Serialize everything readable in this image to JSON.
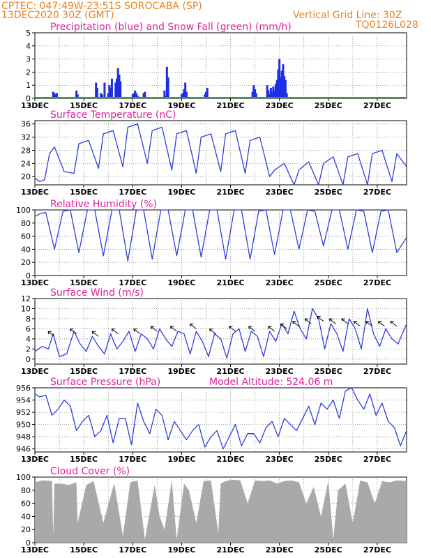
{
  "header": {
    "line1": "CPTEC:   047:49W-23:51S   SOROCABA (SP)",
    "line2": "13DEC2020 30Z (GMT)",
    "grid_note": "Vertical Grid Line: 30Z",
    "code": "TQ0126L028"
  },
  "colors": {
    "header": "#e8821e",
    "title": "#e0219c",
    "line": "#2b3fd9",
    "bar": "#1f2ee6",
    "snow": "#22aa22",
    "cloud": "#a9a9a9",
    "arrow": "#000000"
  },
  "chart_data": [
    {
      "type": "bar",
      "title": "Precipitation (blue) and Snow Fall (green) (mm/h)",
      "x_ticks": [
        "13DEC",
        "15DEC",
        "17DEC",
        "19DEC",
        "21DEC",
        "23DEC",
        "25DEC",
        "27DEC"
      ],
      "x_range": [
        0,
        15.2
      ],
      "ylim": [
        0,
        5
      ],
      "y_ticks": [
        0,
        1,
        2,
        3,
        4,
        5
      ],
      "grid": true,
      "series": [
        {
          "name": "Precipitation",
          "x": [
            0.75,
            0.8,
            0.85,
            0.9,
            1.7,
            1.75,
            2.5,
            2.55,
            2.7,
            2.75,
            2.85,
            3.0,
            3.05,
            3.1,
            3.15,
            3.3,
            3.35,
            3.4,
            3.45,
            3.5,
            4.0,
            4.05,
            4.1,
            4.15,
            4.2,
            4.45,
            4.5,
            5.3,
            5.35,
            5.4,
            5.45,
            6.0,
            6.05,
            6.1,
            6.15,
            6.2,
            6.95,
            7.0,
            7.05,
            8.9,
            8.95,
            9.0,
            9.05,
            9.5,
            9.55,
            9.6,
            9.65,
            9.7,
            9.75,
            9.8,
            9.85,
            9.9,
            9.95,
            10.0,
            10.05,
            10.1,
            10.15,
            10.2,
            10.25,
            10.3
          ],
          "values": [
            0.5,
            0.4,
            0.3,
            0.4,
            0.6,
            0.3,
            1.2,
            0.8,
            0.4,
            0.3,
            1.2,
            0.4,
            1.0,
            0.8,
            1.5,
            1.2,
            1.5,
            2.3,
            1.8,
            1.3,
            0.3,
            0.4,
            0.6,
            0.4,
            0.2,
            0.4,
            0.5,
            0.6,
            0.2,
            2.4,
            1.6,
            0.3,
            0.4,
            0.7,
            1.2,
            0.5,
            0.3,
            0.5,
            0.8,
            0.5,
            1.0,
            0.7,
            0.4,
            1.0,
            0.6,
            0.3,
            0.8,
            0.5,
            0.9,
            0.6,
            1.1,
            1.4,
            2.2,
            3.0,
            1.6,
            2.1,
            2.6,
            1.7,
            1.4,
            0.4
          ]
        },
        {
          "name": "Snow Fall",
          "x": [
            0,
            15.2
          ],
          "values": [
            0,
            0
          ]
        }
      ]
    },
    {
      "type": "line",
      "title": "Surface Temperature (nC)",
      "x_ticks": [
        "13DEC",
        "15DEC",
        "17DEC",
        "19DEC",
        "21DEC",
        "23DEC",
        "25DEC",
        "27DEC"
      ],
      "x_range": [
        0,
        15.2
      ],
      "ylim": [
        17.5,
        37
      ],
      "y_ticks": [
        20,
        24,
        28,
        32,
        36
      ],
      "grid": true,
      "series": [
        {
          "name": "Temperature",
          "x": [
            0,
            0.2,
            0.4,
            0.6,
            0.8,
            1.2,
            1.6,
            1.8,
            2.2,
            2.6,
            2.8,
            3.2,
            3.6,
            3.8,
            4.2,
            4.6,
            4.8,
            5.2,
            5.6,
            5.8,
            6.2,
            6.6,
            6.8,
            7.2,
            7.6,
            7.8,
            8.2,
            8.6,
            8.8,
            9.2,
            9.6,
            9.8,
            10.2,
            10.6,
            10.8,
            11.2,
            11.6,
            11.8,
            12.2,
            12.6,
            12.8,
            13.2,
            13.6,
            13.8,
            14.2,
            14.6,
            14.8,
            15.2
          ],
          "values": [
            19.5,
            18.5,
            19,
            27,
            29,
            21.5,
            21,
            30,
            31,
            22.5,
            33,
            34,
            23,
            35,
            36,
            24,
            34,
            35,
            22,
            33,
            34,
            21,
            32,
            33,
            21.5,
            33,
            34,
            21,
            31,
            32,
            20,
            22,
            24,
            17.5,
            22,
            24.5,
            17,
            24,
            26,
            17,
            26,
            27,
            17.5,
            27,
            28,
            18.5,
            27,
            23
          ]
        }
      ]
    },
    {
      "type": "line",
      "title": "Relative Humidity (%)",
      "x_ticks": [
        "13DEC",
        "15DEC",
        "17DEC",
        "19DEC",
        "21DEC",
        "23DEC",
        "25DEC",
        "27DEC"
      ],
      "x_range": [
        0,
        15.2
      ],
      "ylim": [
        0,
        100
      ],
      "y_ticks": [
        0,
        20,
        40,
        60,
        80,
        100
      ],
      "grid": true,
      "series": [
        {
          "name": "Humidity",
          "x": [
            0,
            0.25,
            0.45,
            0.8,
            1.15,
            1.45,
            1.8,
            2.15,
            2.45,
            2.8,
            3.15,
            3.45,
            3.8,
            4.15,
            4.45,
            4.8,
            5.15,
            5.45,
            5.8,
            6.15,
            6.45,
            6.8,
            7.15,
            7.45,
            7.8,
            8.15,
            8.45,
            8.8,
            9.15,
            9.45,
            9.8,
            10.15,
            10.45,
            10.8,
            11.15,
            11.45,
            11.8,
            12.15,
            12.45,
            12.8,
            13.15,
            13.45,
            13.8,
            14.15,
            14.45,
            14.8,
            15.2
          ],
          "values": [
            90,
            95,
            96,
            40,
            98,
            100,
            35,
            100,
            100,
            30,
            100,
            100,
            22,
            100,
            100,
            25,
            100,
            100,
            30,
            100,
            100,
            28,
            100,
            100,
            25,
            100,
            100,
            25,
            98,
            100,
            32,
            100,
            100,
            40,
            100,
            98,
            45,
            100,
            100,
            40,
            100,
            98,
            35,
            98,
            100,
            35,
            58
          ]
        }
      ]
    },
    {
      "type": "line",
      "title": "Surface Wind (m/s)",
      "x_ticks": [
        "13DEC",
        "15DEC",
        "17DEC",
        "19DEC",
        "21DEC",
        "23DEC",
        "25DEC",
        "27DEC"
      ],
      "x_range": [
        0,
        15.2
      ],
      "ylim": [
        -1,
        12
      ],
      "y_ticks": [
        0,
        2,
        4,
        6,
        8,
        10,
        12
      ],
      "grid": true,
      "series": [
        {
          "name": "Wind speed",
          "x": [
            0,
            0.3,
            0.55,
            0.75,
            1.0,
            1.3,
            1.6,
            1.85,
            2.1,
            2.35,
            2.6,
            2.85,
            3.1,
            3.35,
            3.6,
            3.85,
            4.1,
            4.35,
            4.6,
            4.85,
            5.1,
            5.35,
            5.6,
            5.85,
            6.1,
            6.35,
            6.6,
            6.85,
            7.1,
            7.35,
            7.6,
            7.85,
            8.1,
            8.35,
            8.6,
            8.85,
            9.1,
            9.35,
            9.6,
            9.85,
            10.1,
            10.35,
            10.6,
            10.85,
            11.1,
            11.35,
            11.6,
            11.85,
            12.1,
            12.35,
            12.6,
            12.85,
            13.1,
            13.35,
            13.6,
            13.85,
            14.1,
            14.35,
            14.6,
            14.85,
            15.2
          ],
          "values": [
            1.5,
            2.5,
            2,
            5,
            0.5,
            1,
            5.5,
            3,
            1.5,
            4.5,
            2.5,
            1,
            5,
            2,
            3.5,
            5.5,
            1.5,
            5,
            4,
            2,
            6,
            4,
            2.5,
            5.5,
            5,
            1,
            5.5,
            3.5,
            0.5,
            5,
            4,
            0.2,
            5,
            6,
            1.5,
            5.5,
            4.5,
            0.5,
            5.5,
            3.5,
            7,
            5,
            9.5,
            6,
            4,
            10,
            8,
            2,
            7,
            5,
            1.5,
            8,
            6,
            2,
            10,
            5,
            2.5,
            6,
            4,
            3,
            7
          ]
        },
        {
          "name": "Wind vectors",
          "x": [
            0.8,
            1.7,
            2.6,
            3.4,
            4.3,
            5.0,
            5.8,
            6.6,
            7.4,
            8.2,
            9.0,
            9.8,
            10.3,
            10.8,
            11.3,
            11.8,
            12.3,
            12.8,
            13.3,
            13.8,
            14.3,
            14.8
          ],
          "values": [
            4.5,
            5,
            4.5,
            5,
            5,
            5.5,
            5.5,
            6,
            5,
            5.5,
            5.5,
            5.5,
            6,
            6.5,
            7,
            7.5,
            7,
            7,
            6.5,
            6.5,
            6.5,
            6.5
          ]
        }
      ]
    },
    {
      "type": "line",
      "title": "Surface Pressure (hPa)",
      "annotation": "Model Altitude: 524.06 m",
      "x_ticks": [
        "13DEC",
        "15DEC",
        "17DEC",
        "19DEC",
        "21DEC",
        "23DEC",
        "25DEC",
        "27DEC"
      ],
      "x_range": [
        0,
        15.2
      ],
      "ylim": [
        945.5,
        956
      ],
      "y_ticks": [
        946,
        948,
        950,
        952,
        954,
        956
      ],
      "grid": true,
      "series": [
        {
          "name": "Pressure",
          "x": [
            0,
            0.2,
            0.45,
            0.7,
            0.95,
            1.2,
            1.45,
            1.7,
            1.95,
            2.2,
            2.45,
            2.7,
            2.95,
            3.2,
            3.45,
            3.7,
            3.95,
            4.2,
            4.45,
            4.7,
            4.95,
            5.2,
            5.45,
            5.7,
            5.95,
            6.2,
            6.45,
            6.7,
            6.95,
            7.2,
            7.45,
            7.7,
            7.95,
            8.2,
            8.45,
            8.7,
            8.95,
            9.2,
            9.45,
            9.7,
            9.95,
            10.2,
            10.45,
            10.7,
            10.95,
            11.2,
            11.45,
            11.7,
            11.95,
            12.2,
            12.45,
            12.7,
            12.95,
            13.2,
            13.45,
            13.7,
            13.95,
            14.2,
            14.45,
            14.7,
            14.95,
            15.2
          ],
          "values": [
            955,
            954.5,
            954.8,
            951.5,
            952.5,
            954,
            953,
            949,
            950.5,
            951.5,
            948,
            949,
            951.5,
            947,
            951,
            951,
            946.7,
            953.5,
            950.5,
            948.5,
            952.5,
            951.5,
            947.5,
            950.5,
            949,
            947.5,
            949,
            950,
            946.3,
            948,
            949,
            946,
            948,
            950,
            946.5,
            948.5,
            948.5,
            947,
            949.5,
            950.5,
            948,
            951,
            950,
            949,
            951,
            953,
            950,
            953.5,
            952.5,
            954,
            951,
            955.5,
            956,
            954,
            952.5,
            955,
            951.5,
            953.5,
            950.5,
            949.5,
            946.5,
            949
          ]
        }
      ]
    },
    {
      "type": "area",
      "title": "Cloud Cover (%)",
      "x_ticks": [
        "13DEC",
        "15DEC",
        "17DEC",
        "19DEC",
        "21DEC",
        "23DEC",
        "25DEC",
        "27DEC"
      ],
      "x_range": [
        0,
        15.2
      ],
      "ylim": [
        0,
        100
      ],
      "y_ticks": [
        0,
        20,
        40,
        60,
        80,
        100
      ],
      "grid": true,
      "series": [
        {
          "name": "Cloud cover",
          "x": [
            0,
            0.3,
            0.7,
            0.75,
            0.8,
            1.1,
            1.4,
            1.7,
            1.75,
            2.1,
            2.4,
            2.8,
            3.2,
            3.25,
            3.6,
            3.9,
            4.2,
            4.5,
            4.9,
            5.1,
            5.3,
            5.6,
            5.8,
            6.1,
            6.3,
            6.6,
            6.9,
            7.2,
            7.5,
            7.6,
            7.8,
            8.1,
            8.4,
            8.7,
            9.0,
            9.3,
            9.6,
            9.9,
            10.2,
            10.5,
            10.8,
            11.1,
            11.4,
            11.7,
            12.0,
            12.2,
            12.4,
            12.7,
            13.0,
            13.3,
            13.6,
            13.9,
            14.2,
            14.5,
            14.8,
            15.2
          ],
          "values": [
            92,
            95,
            94,
            10,
            90,
            90,
            88,
            92,
            30,
            88,
            94,
            30,
            85,
            90,
            10,
            92,
            95,
            5,
            88,
            40,
            20,
            95,
            5,
            90,
            80,
            30,
            94,
            95,
            15,
            90,
            94,
            96,
            95,
            60,
            95,
            94,
            95,
            90,
            94,
            95,
            92,
            60,
            85,
            40,
            95,
            5,
            80,
            90,
            30,
            95,
            92,
            60,
            94,
            92,
            95,
            94
          ]
        }
      ]
    }
  ]
}
